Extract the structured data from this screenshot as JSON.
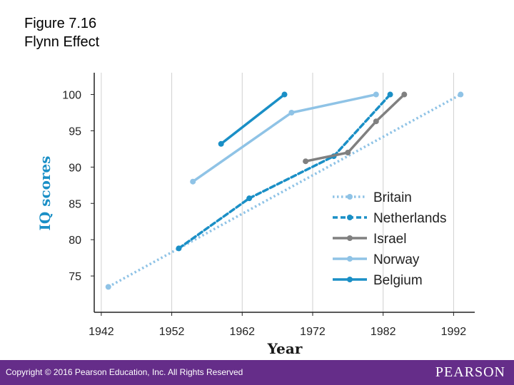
{
  "header": {
    "title": "Figure 7.16",
    "subtitle": "Flynn Effect"
  },
  "footer": {
    "copyright": "Copyright © 2016 Pearson Education, Inc. All Rights Reserved",
    "brand": "PEARSON",
    "background": "#652d89"
  },
  "chart_data": {
    "type": "line",
    "xlabel": "Year",
    "ylabel": "IQ scores",
    "xlim": [
      1941,
      1995
    ],
    "ylim": [
      70,
      103
    ],
    "x_ticks": [
      1942,
      1952,
      1962,
      1972,
      1982,
      1992
    ],
    "y_ticks": [
      75,
      80,
      85,
      90,
      95,
      100
    ],
    "grid": "vertical",
    "legend_position": "bottom-right",
    "series": [
      {
        "name": "Britain",
        "color": "#8fc3e6",
        "style": "dotted",
        "x": [
          1943,
          1993
        ],
        "y": [
          73.5,
          100
        ]
      },
      {
        "name": "Netherlands",
        "color": "#1a8fc6",
        "style": "dashed",
        "x": [
          1953,
          1963,
          1975,
          1983
        ],
        "y": [
          78.8,
          85.7,
          91.5,
          100
        ]
      },
      {
        "name": "Israel",
        "color": "#808080",
        "style": "solid",
        "x": [
          1971,
          1977,
          1981,
          1985
        ],
        "y": [
          90.8,
          92,
          96.3,
          100
        ]
      },
      {
        "name": "Norway",
        "color": "#8fc3e6",
        "style": "solid",
        "x": [
          1955,
          1969,
          1981
        ],
        "y": [
          88,
          97.5,
          100
        ]
      },
      {
        "name": "Belgium",
        "color": "#1a8fc6",
        "style": "solid",
        "x": [
          1959,
          1968
        ],
        "y": [
          93.2,
          100
        ]
      }
    ]
  }
}
